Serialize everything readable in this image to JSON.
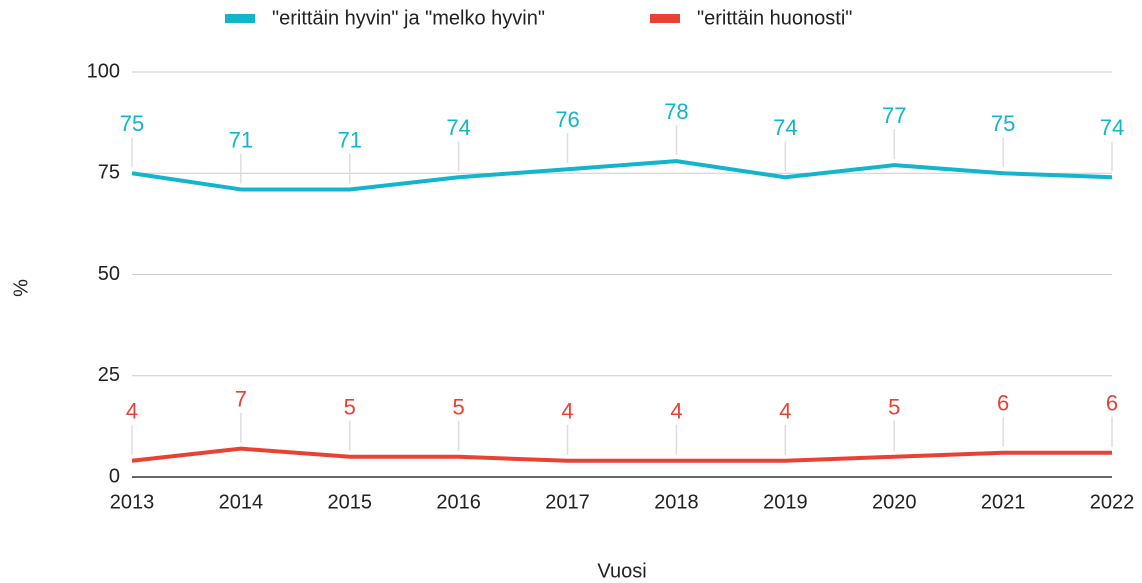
{
  "chart_data": {
    "type": "line",
    "x_label": "Vuosi",
    "y_label": "%",
    "categories": [
      "2013",
      "2014",
      "2015",
      "2016",
      "2017",
      "2018",
      "2019",
      "2020",
      "2021",
      "2022"
    ],
    "series": [
      {
        "name": "\"erittäin hyvin\" ja \"melko hyvin\"",
        "color": "#12b5cb",
        "values": [
          75,
          71,
          71,
          74,
          76,
          78,
          74,
          77,
          75,
          74
        ]
      },
      {
        "name": "\"erittäin huonosti\"",
        "color": "#e94235",
        "values": [
          4,
          7,
          5,
          5,
          4,
          4,
          4,
          5,
          6,
          6
        ]
      }
    ],
    "ylim": [
      0,
      100
    ],
    "yticks": [
      0,
      25,
      50,
      75,
      100
    ],
    "grid": true,
    "legend": "top"
  }
}
